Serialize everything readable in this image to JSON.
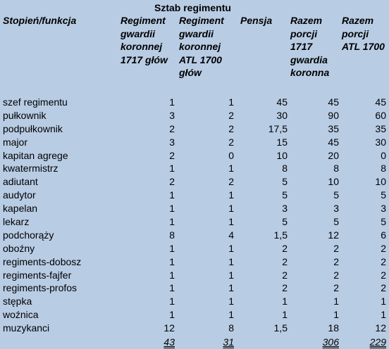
{
  "caption": "Sztab regimentu",
  "headers": {
    "col0": "Stopień/funkcja",
    "col1": "Regiment\ngwardii\nkoronnej\n1717 głów",
    "col2": "Regiment\ngwardii\nkoronnej\nATL 1700\ngłów",
    "col3": "Pensja",
    "col4": "Razem\nporcji\n1717\ngwardia\nkoronna",
    "col5": "Razem\nporcji\nATL 1700"
  },
  "rows": [
    {
      "name": "szef regimentu",
      "v1": "1",
      "v2": "1",
      "v3": "45",
      "v4": "45",
      "v5": "45"
    },
    {
      "name": "pułkownik",
      "v1": "3",
      "v2": "2",
      "v3": "30",
      "v4": "90",
      "v5": "60"
    },
    {
      "name": "podpułkownik",
      "v1": "2",
      "v2": "2",
      "v3": "17,5",
      "v4": "35",
      "v5": "35"
    },
    {
      "name": "major",
      "v1": "3",
      "v2": "2",
      "v3": "15",
      "v4": "45",
      "v5": "30"
    },
    {
      "name": "kapitan agrege",
      "v1": "2",
      "v2": "0",
      "v3": "10",
      "v4": "20",
      "v5": "0"
    },
    {
      "name": "kwatermistrz",
      "v1": "1",
      "v2": "1",
      "v3": "8",
      "v4": "8",
      "v5": "8"
    },
    {
      "name": "adiutant",
      "v1": "2",
      "v2": "2",
      "v3": "5",
      "v4": "10",
      "v5": "10"
    },
    {
      "name": "audytor",
      "v1": "1",
      "v2": "1",
      "v3": "5",
      "v4": "5",
      "v5": "5"
    },
    {
      "name": "kapelan",
      "v1": "1",
      "v2": "1",
      "v3": "3",
      "v4": "3",
      "v5": "3"
    },
    {
      "name": "lekarz",
      "v1": "1",
      "v2": "1",
      "v3": "5",
      "v4": "5",
      "v5": "5"
    },
    {
      "name": "podchorąży",
      "v1": "8",
      "v2": "4",
      "v3": "1,5",
      "v4": "12",
      "v5": "6"
    },
    {
      "name": "oboźny",
      "v1": "1",
      "v2": "1",
      "v3": "2",
      "v4": "2",
      "v5": "2"
    },
    {
      "name": "regiments-dobosz",
      "v1": "1",
      "v2": "1",
      "v3": "2",
      "v4": "2",
      "v5": "2"
    },
    {
      "name": "regiments-fajfer",
      "v1": "1",
      "v2": "1",
      "v3": "2",
      "v4": "2",
      "v5": "2"
    },
    {
      "name": "regiments-profos",
      "v1": "1",
      "v2": "1",
      "v3": "2",
      "v4": "2",
      "v5": "2"
    },
    {
      "name": "stępka",
      "v1": "1",
      "v2": "1",
      "v3": "1",
      "v4": "1",
      "v5": "1"
    },
    {
      "name": "woźnica",
      "v1": "1",
      "v2": "1",
      "v3": "1",
      "v4": "1",
      "v5": "1"
    },
    {
      "name": "muzykanci",
      "v1": "12",
      "v2": "8",
      "v3": "1,5",
      "v4": "18",
      "v5": "12"
    }
  ],
  "totals": {
    "v1": "43",
    "v2": "31",
    "v4": "306",
    "v5": "229"
  }
}
